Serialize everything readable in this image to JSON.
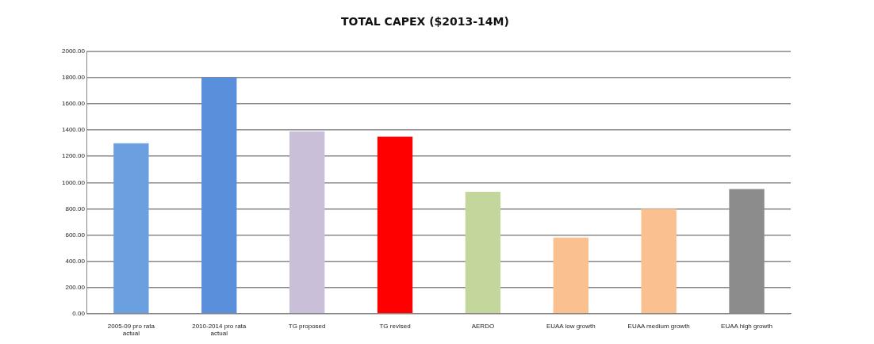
{
  "chart_data": {
    "type": "bar",
    "title": "TOTAL CAPEX ($2013-14M)",
    "categories": [
      "2005-09 pro rata actual",
      "2010-2014 pro rata actual",
      "TG proposed",
      "TG revised",
      "AERDO",
      "EUAA low growth",
      "EUAA medium growth",
      "EUAA high growth"
    ],
    "values": [
      1300,
      1800,
      1390,
      1350,
      930,
      580,
      800,
      950
    ],
    "colors": [
      "#6a9fe0",
      "#5a8fdc",
      "#c9bfd9",
      "#ff0000",
      "#c3d69b",
      "#fac090",
      "#fac090",
      "#8c8c8c"
    ],
    "ylim": [
      0,
      2000
    ],
    "yticks": [
      {
        "value": 0,
        "label": "0.00"
      },
      {
        "value": 200,
        "label": "200.00"
      },
      {
        "value": 400,
        "label": "400.00"
      },
      {
        "value": 600,
        "label": "600.00"
      },
      {
        "value": 800,
        "label": "800.00"
      },
      {
        "value": 1000,
        "label": "1000.00"
      },
      {
        "value": 1200,
        "label": "1200.00"
      },
      {
        "value": 1400,
        "label": "1400.00"
      },
      {
        "value": 1600,
        "label": "1600.00"
      },
      {
        "value": 1800,
        "label": "1800.00"
      },
      {
        "value": 2000,
        "label": "2000.00"
      }
    ],
    "grid": "y",
    "legend": false
  }
}
